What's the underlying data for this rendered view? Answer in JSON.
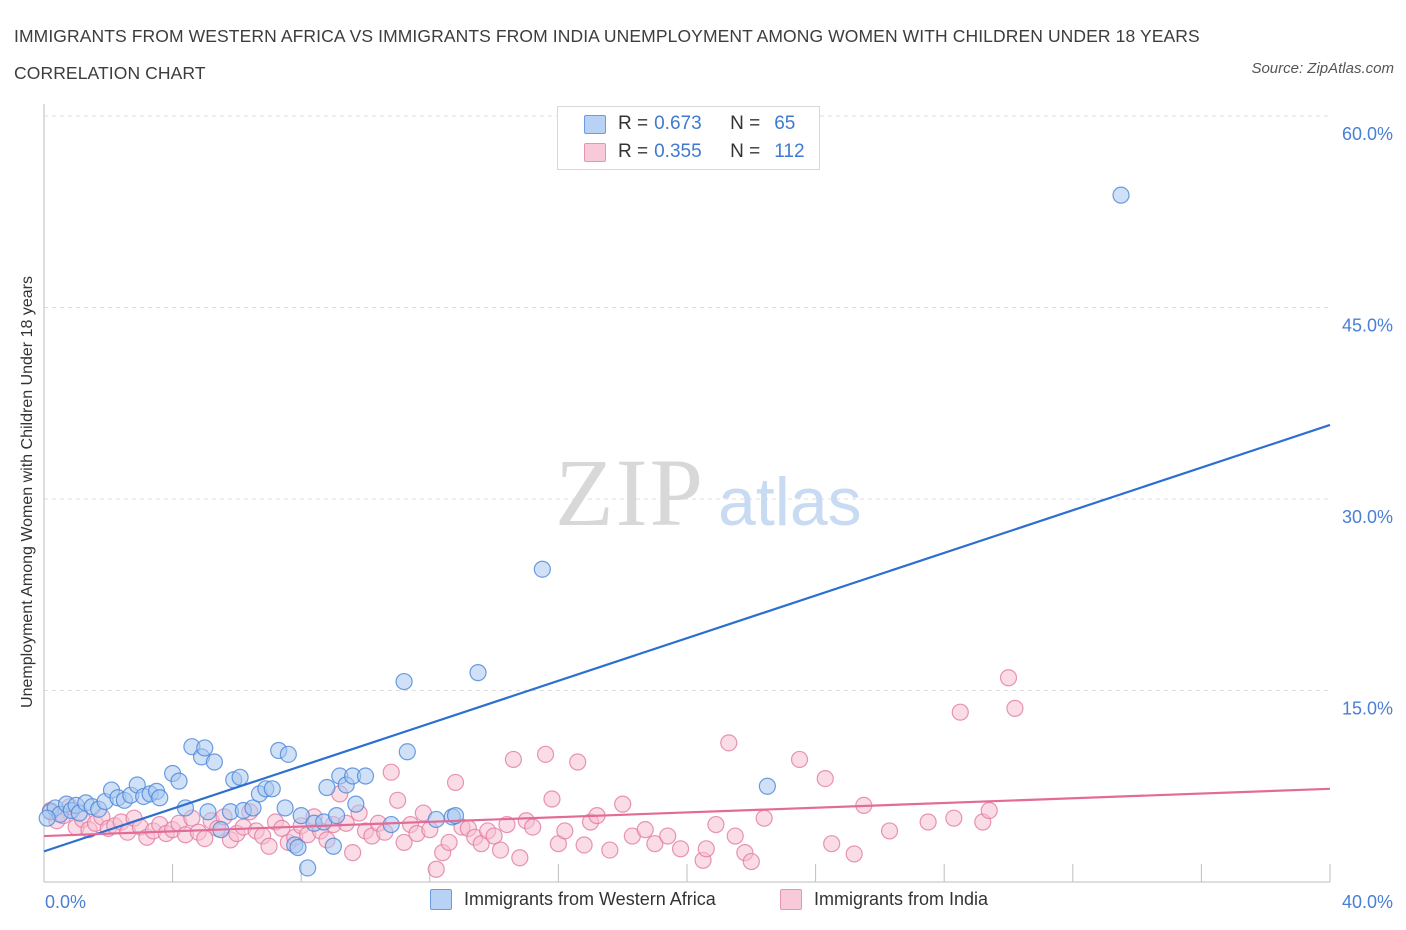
{
  "title": "IMMIGRANTS FROM WESTERN AFRICA VS IMMIGRANTS FROM INDIA UNEMPLOYMENT AMONG WOMEN WITH CHILDREN UNDER 18 YEARS CORRELATION CHART",
  "source": "Source: ZipAtlas.com",
  "watermark": {
    "zip": "ZIP",
    "atlas": "atlas"
  },
  "colors": {
    "blue": "#4a86d8",
    "blue_fill": "#a9c8f1",
    "pink": "#e27aa0",
    "pink_fill": "#f5bfd1",
    "line_blue": "#2d6fd0",
    "line_pink": "#e26b98",
    "grid": "#dddddd",
    "tick_text": "#4a7fd4"
  },
  "legend": {
    "blue": {
      "r_label": "R =",
      "r_value": "0.673",
      "n_label": "N =",
      "n_value": "65"
    },
    "pink": {
      "r_label": "R =",
      "r_value": "0.355",
      "n_label": "N =",
      "n_value": "112"
    }
  },
  "chart_data": {
    "type": "scatter",
    "title": "IMMIGRANTS FROM WESTERN AFRICA VS IMMIGRANTS FROM INDIA UNEMPLOYMENT AMONG WOMEN WITH CHILDREN UNDER 18 YEARS CORRELATION CHART",
    "xlabel": "",
    "ylabel": "Unemployment Among Women with Children Under 18 years",
    "xlim": [
      0,
      40
    ],
    "ylim": [
      0,
      60
    ],
    "x_tick_labels": [
      "0.0%",
      "40.0%"
    ],
    "y_ticks": [
      15,
      30,
      45,
      60
    ],
    "y_tick_labels": [
      "15.0%",
      "30.0%",
      "45.0%",
      "60.0%"
    ],
    "grid": true,
    "legend_position": "top-center",
    "series": [
      {
        "name": "Immigrants from Western Africa",
        "r": 0.673,
        "n": 65,
        "trend": {
          "x": [
            0,
            40
          ],
          "y": [
            2.4,
            35.8
          ]
        },
        "points": [
          [
            0.2,
            5.5
          ],
          [
            0.35,
            5.8
          ],
          [
            0.5,
            5.3
          ],
          [
            0.7,
            6.1
          ],
          [
            0.85,
            5.6
          ],
          [
            1.0,
            6.0
          ],
          [
            1.1,
            5.4
          ],
          [
            1.3,
            6.2
          ],
          [
            1.5,
            5.9
          ],
          [
            1.7,
            5.7
          ],
          [
            1.9,
            6.3
          ],
          [
            2.1,
            7.2
          ],
          [
            2.3,
            6.6
          ],
          [
            2.5,
            6.4
          ],
          [
            2.7,
            6.8
          ],
          [
            2.9,
            7.6
          ],
          [
            3.1,
            6.7
          ],
          [
            3.3,
            6.9
          ],
          [
            3.5,
            7.1
          ],
          [
            3.6,
            6.6
          ],
          [
            4.0,
            8.5
          ],
          [
            4.2,
            7.9
          ],
          [
            4.4,
            5.8
          ],
          [
            4.6,
            10.6
          ],
          [
            4.9,
            9.8
          ],
          [
            5.0,
            10.5
          ],
          [
            5.3,
            9.4
          ],
          [
            5.1,
            5.5
          ],
          [
            5.5,
            4.1
          ],
          [
            5.8,
            5.5
          ],
          [
            5.9,
            8.0
          ],
          [
            6.1,
            8.2
          ],
          [
            6.2,
            5.6
          ],
          [
            6.5,
            5.8
          ],
          [
            6.7,
            6.9
          ],
          [
            6.9,
            7.3
          ],
          [
            7.1,
            7.3
          ],
          [
            7.3,
            10.3
          ],
          [
            7.5,
            5.8
          ],
          [
            7.6,
            10.0
          ],
          [
            7.8,
            2.9
          ],
          [
            7.9,
            2.7
          ],
          [
            8.0,
            5.2
          ],
          [
            8.2,
            1.1
          ],
          [
            8.4,
            4.6
          ],
          [
            8.7,
            4.7
          ],
          [
            8.8,
            7.4
          ],
          [
            9.0,
            2.8
          ],
          [
            9.1,
            5.2
          ],
          [
            9.2,
            8.3
          ],
          [
            9.4,
            7.6
          ],
          [
            9.6,
            8.3
          ],
          [
            9.7,
            6.1
          ],
          [
            10.0,
            8.3
          ],
          [
            10.8,
            4.5
          ],
          [
            11.2,
            15.7
          ],
          [
            11.3,
            10.2
          ],
          [
            12.2,
            4.9
          ],
          [
            12.7,
            5.1
          ],
          [
            12.8,
            5.2
          ],
          [
            13.5,
            16.4
          ],
          [
            15.5,
            24.5
          ],
          [
            22.5,
            7.5
          ],
          [
            33.5,
            53.8
          ],
          [
            0.1,
            5.0
          ]
        ]
      },
      {
        "name": "Immigrants from India",
        "r": 0.355,
        "n": 112,
        "trend": {
          "x": [
            0,
            40
          ],
          "y": [
            3.6,
            7.3
          ]
        },
        "points": [
          [
            0.2,
            5.6
          ],
          [
            0.4,
            4.8
          ],
          [
            0.6,
            5.2
          ],
          [
            0.8,
            5.9
          ],
          [
            1.0,
            4.3
          ],
          [
            1.2,
            4.9
          ],
          [
            1.4,
            4.1
          ],
          [
            1.6,
            4.6
          ],
          [
            1.8,
            5.1
          ],
          [
            2.0,
            4.2
          ],
          [
            2.2,
            4.4
          ],
          [
            2.4,
            4.7
          ],
          [
            2.6,
            3.9
          ],
          [
            2.8,
            5.0
          ],
          [
            3.0,
            4.3
          ],
          [
            3.2,
            3.5
          ],
          [
            3.4,
            4.0
          ],
          [
            3.6,
            4.5
          ],
          [
            3.8,
            3.8
          ],
          [
            4.0,
            4.1
          ],
          [
            4.2,
            4.6
          ],
          [
            4.4,
            3.7
          ],
          [
            4.6,
            5.0
          ],
          [
            4.8,
            3.9
          ],
          [
            5.0,
            3.4
          ],
          [
            5.2,
            4.8
          ],
          [
            5.4,
            4.2
          ],
          [
            5.6,
            5.1
          ],
          [
            5.8,
            3.3
          ],
          [
            6.0,
            3.8
          ],
          [
            6.2,
            4.3
          ],
          [
            6.4,
            5.5
          ],
          [
            6.6,
            4.0
          ],
          [
            6.8,
            3.6
          ],
          [
            7.0,
            2.8
          ],
          [
            7.2,
            4.7
          ],
          [
            7.4,
            4.2
          ],
          [
            7.6,
            3.1
          ],
          [
            7.8,
            3.5
          ],
          [
            8.0,
            4.4
          ],
          [
            8.2,
            3.7
          ],
          [
            8.4,
            5.1
          ],
          [
            8.6,
            4.0
          ],
          [
            8.8,
            3.3
          ],
          [
            9.0,
            4.5
          ],
          [
            9.2,
            6.9
          ],
          [
            9.4,
            4.6
          ],
          [
            9.6,
            2.3
          ],
          [
            9.8,
            5.4
          ],
          [
            10.0,
            4.0
          ],
          [
            10.2,
            3.6
          ],
          [
            10.4,
            4.6
          ],
          [
            10.6,
            3.9
          ],
          [
            10.8,
            8.6
          ],
          [
            11.0,
            6.4
          ],
          [
            11.2,
            3.1
          ],
          [
            11.4,
            4.5
          ],
          [
            11.6,
            3.8
          ],
          [
            11.8,
            5.4
          ],
          [
            12.0,
            4.1
          ],
          [
            12.2,
            1.0
          ],
          [
            12.4,
            2.3
          ],
          [
            12.6,
            3.1
          ],
          [
            12.8,
            7.8
          ],
          [
            13.0,
            4.3
          ],
          [
            13.2,
            4.2
          ],
          [
            13.4,
            3.5
          ],
          [
            13.6,
            3.0
          ],
          [
            13.8,
            4.0
          ],
          [
            14.0,
            3.6
          ],
          [
            14.2,
            2.5
          ],
          [
            14.4,
            4.5
          ],
          [
            14.6,
            9.6
          ],
          [
            14.8,
            1.9
          ],
          [
            15.0,
            4.8
          ],
          [
            15.2,
            4.3
          ],
          [
            15.6,
            10.0
          ],
          [
            15.8,
            6.5
          ],
          [
            16.0,
            3.0
          ],
          [
            16.2,
            4.0
          ],
          [
            16.6,
            9.4
          ],
          [
            16.8,
            2.9
          ],
          [
            17.0,
            4.7
          ],
          [
            17.2,
            5.2
          ],
          [
            17.6,
            2.5
          ],
          [
            18.0,
            6.1
          ],
          [
            18.3,
            3.6
          ],
          [
            18.7,
            4.1
          ],
          [
            19.0,
            3.0
          ],
          [
            19.4,
            3.6
          ],
          [
            19.8,
            2.6
          ],
          [
            20.5,
            1.7
          ],
          [
            20.6,
            2.6
          ],
          [
            20.9,
            4.5
          ],
          [
            21.3,
            10.9
          ],
          [
            21.5,
            3.6
          ],
          [
            21.8,
            2.3
          ],
          [
            22.0,
            1.6
          ],
          [
            22.4,
            5.0
          ],
          [
            23.5,
            9.6
          ],
          [
            24.3,
            8.1
          ],
          [
            24.5,
            3.0
          ],
          [
            25.2,
            2.2
          ],
          [
            25.5,
            6.0
          ],
          [
            26.3,
            4.0
          ],
          [
            27.5,
            4.7
          ],
          [
            28.3,
            5.0
          ],
          [
            29.2,
            4.7
          ],
          [
            29.4,
            5.6
          ],
          [
            30.0,
            16.0
          ],
          [
            30.2,
            13.6
          ],
          [
            28.5,
            13.3
          ]
        ]
      }
    ]
  },
  "bottom_legend": {
    "blue_label": "Immigrants from Western Africa",
    "pink_label": "Immigrants from India"
  }
}
